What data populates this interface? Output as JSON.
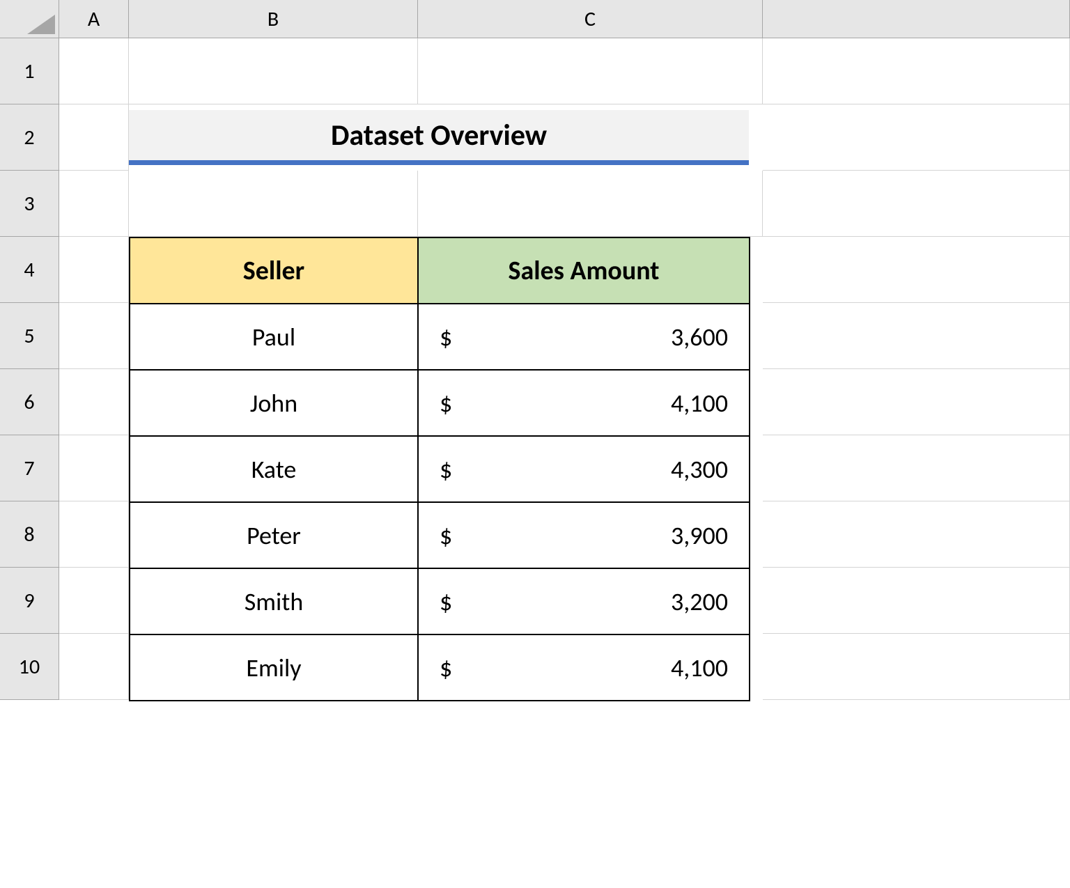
{
  "columns": [
    "A",
    "B",
    "C"
  ],
  "rows": [
    "1",
    "2",
    "3",
    "4",
    "5",
    "6",
    "7",
    "8",
    "9",
    "10"
  ],
  "title": "Dataset Overview",
  "table": {
    "headers": {
      "seller": "Seller",
      "amount": "Sales Amount"
    },
    "header_colors": {
      "seller": "#ffe699",
      "amount": "#c6e0b4"
    },
    "currency_symbol": "$",
    "data": [
      {
        "seller": "Paul",
        "amount": "3,600"
      },
      {
        "seller": "John",
        "amount": "4,100"
      },
      {
        "seller": "Kate",
        "amount": "4,300"
      },
      {
        "seller": "Peter",
        "amount": "3,900"
      },
      {
        "seller": "Smith",
        "amount": "3,200"
      },
      {
        "seller": "Emily",
        "amount": "4,100"
      }
    ]
  },
  "styling": {
    "title_bg": "#f2f2f2",
    "title_underline": "#4472c4",
    "header_bg": "#e6e6e6",
    "grid_line": "#d4d4d4",
    "header_border": "#a6a6a6",
    "table_border": "#000000",
    "cell_bg": "#ffffff",
    "font_family": "Calibri",
    "title_fontsize": 42,
    "header_fontsize": 38,
    "data_fontsize": 36,
    "colhead_fontsize": 30
  }
}
